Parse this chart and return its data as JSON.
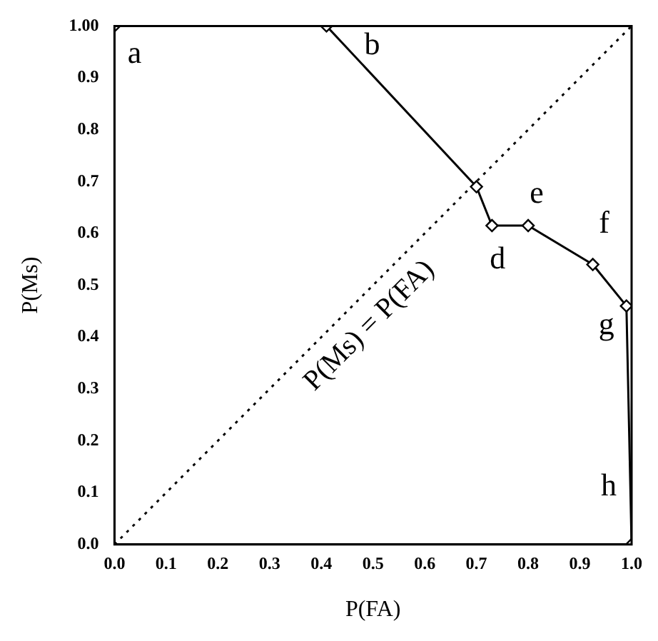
{
  "chart_data": {
    "type": "line",
    "xlabel": "P(FA)",
    "ylabel": "P(Ms)",
    "series": [
      {
        "color": "#000000",
        "marker": "diamond",
        "line_style": "solid",
        "x": [
          0,
          0.41,
          0.7,
          0.73,
          0.8,
          0.925,
          0.99,
          1
        ],
        "values": [
          1,
          1,
          0.69,
          0.615,
          0.615,
          0.54,
          0.46,
          0
        ]
      },
      {
        "color": "#000000",
        "marker": "none",
        "line_style": "dotted",
        "x": [
          0,
          1
        ],
        "values": [
          0,
          1
        ]
      }
    ],
    "xlim": [
      0,
      1
    ],
    "ylim": [
      0,
      1
    ],
    "xticks": [
      {
        "value": 0,
        "label": "0.0"
      },
      0.1,
      0.2,
      0.3,
      0.4,
      0.5,
      0.6,
      0.7,
      0.8,
      0.9,
      {
        "value": 1,
        "label": "1.0"
      }
    ],
    "yticks": [
      {
        "value": 0,
        "label": "0.0"
      },
      0.1,
      0.2,
      0.3,
      0.4,
      0.5,
      0.6,
      0.7,
      0.8,
      0.9,
      {
        "value": 1,
        "label": "1.00"
      }
    ],
    "grid": false,
    "legend": false,
    "annotations": [
      {
        "text": "a",
        "x": 0,
        "y": 1
      },
      {
        "text": "b",
        "x": 0.41,
        "y": 1
      },
      {
        "text": "d",
        "x": 0.73,
        "y": 0.615
      },
      {
        "text": "e",
        "x": 0.8,
        "y": 0.615
      },
      {
        "text": "f",
        "x": 0.925,
        "y": 0.54
      },
      {
        "text": "g",
        "x": 0.99,
        "y": 0.46
      },
      {
        "text": "h",
        "x": 1,
        "y": 0
      },
      {
        "text": "P(Ms) = P(FA)",
        "x": 0.46,
        "y": 0.46
      }
    ]
  }
}
